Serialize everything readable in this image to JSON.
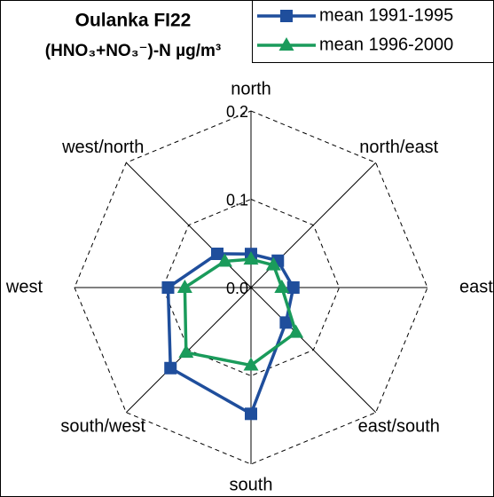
{
  "chart_data": {
    "type": "radar",
    "title": "Oulanka FI22",
    "subtitle": "(HNO₃+NO₃⁻)-N µg/m³",
    "categories": [
      "north",
      "north/east",
      "east",
      "east/south",
      "south",
      "south/west",
      "west",
      "west/north"
    ],
    "series": [
      {
        "name": "mean 1991-1995",
        "color": "#1f4e9c",
        "marker": "square",
        "values": [
          0.038,
          0.043,
          0.048,
          0.056,
          0.143,
          0.129,
          0.094,
          0.054
        ]
      },
      {
        "name": "mean 1996-2000",
        "color": "#1a9b5b",
        "marker": "triangle",
        "values": [
          0.032,
          0.036,
          0.035,
          0.072,
          0.088,
          0.104,
          0.075,
          0.042
        ]
      }
    ],
    "rlim": [
      0,
      0.2
    ],
    "rticks": [
      {
        "value": 0,
        "label": "0.0"
      },
      0.1,
      0.2
    ],
    "grid": true,
    "legend": "top-right"
  }
}
